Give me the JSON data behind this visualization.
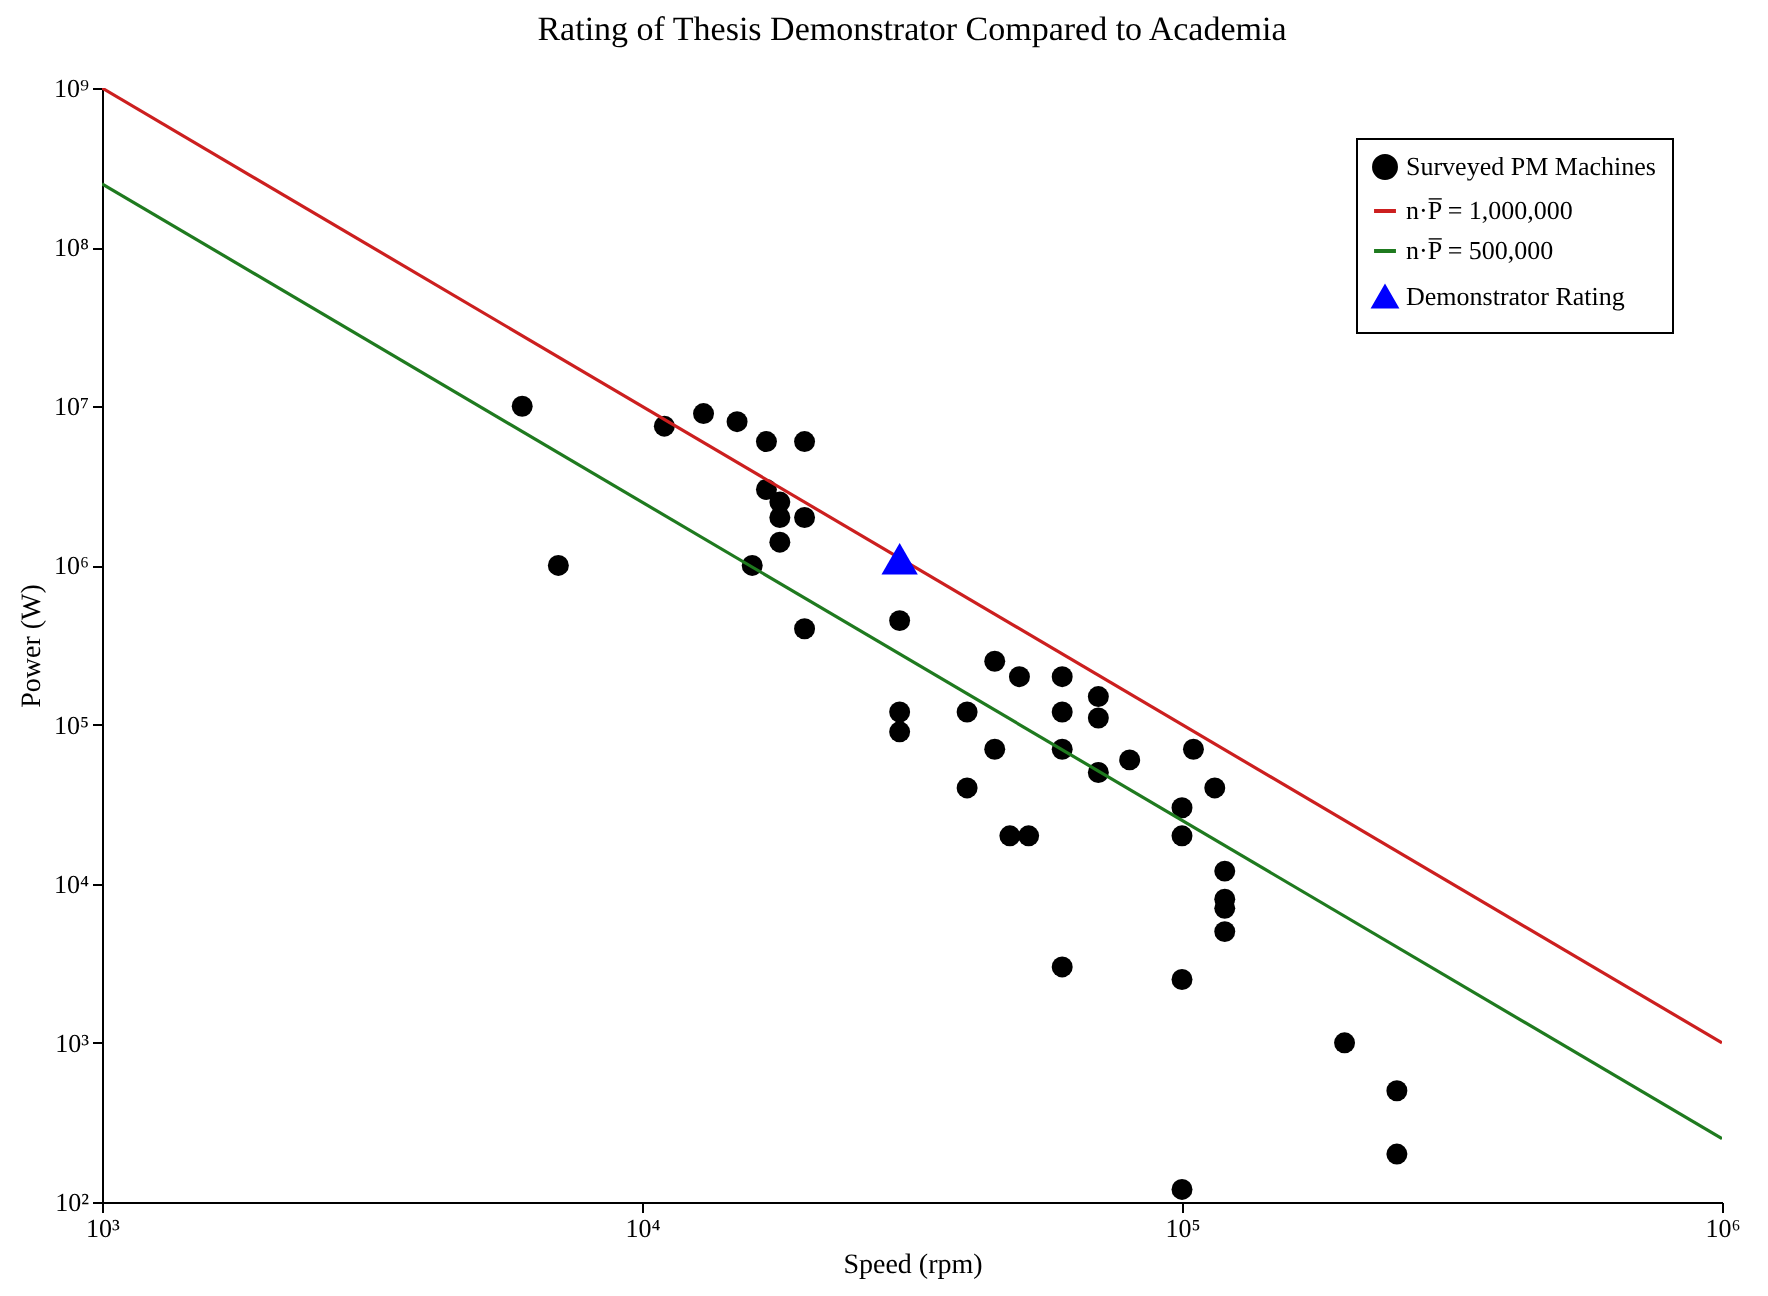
{
  "chart_data": {
    "type": "scatter",
    "title": "Rating of Thesis Demonstrator Compared to Academia",
    "xlabel": "Speed (rpm)",
    "ylabel": "Power (W)",
    "log": "xy",
    "grid": false,
    "legend": "top right",
    "xlim": [
      1000,
      1000000
    ],
    "ylim": [
      100,
      1000000000
    ],
    "xticks": [
      {
        "value": 1000,
        "label": "10³"
      },
      {
        "value": 10000,
        "label": "10⁴"
      },
      {
        "value": 100000,
        "label": "10⁵"
      },
      {
        "value": 1000000,
        "label": "10⁶"
      }
    ],
    "yticks": [
      {
        "value": 100,
        "label": "10²"
      },
      {
        "value": 1000,
        "label": "10³"
      },
      {
        "value": 10000,
        "label": "10⁴"
      },
      {
        "value": 100000,
        "label": "10⁵"
      },
      {
        "value": 1000000,
        "label": "10⁶"
      },
      {
        "value": 10000000,
        "label": "10⁷"
      },
      {
        "value": 100000000,
        "label": "10⁸"
      },
      {
        "value": 1000000000,
        "label": "10⁹"
      }
    ],
    "series": [
      {
        "name": "Surveyed PM Machines",
        "marker": "circle",
        "color": "#000000",
        "x": [
          6000,
          7000,
          11000,
          13000,
          15000,
          17000,
          20000,
          17000,
          18000,
          18000,
          20000,
          18000,
          16000,
          20000,
          30000,
          30000,
          30000,
          45000,
          50000,
          60000,
          70000,
          40000,
          60000,
          70000,
          45000,
          60000,
          105000,
          80000,
          70000,
          40000,
          115000,
          100000,
          48000,
          52000,
          100000,
          120000,
          120000,
          120000,
          120000,
          60000,
          100000,
          200000,
          250000,
          250000,
          100000
        ],
        "values": [
          10000000,
          1000000,
          7500000,
          9000000,
          8000000,
          6000000,
          6000000,
          3000000,
          2500000,
          2000000,
          2000000,
          1400000,
          1000000,
          400000,
          450000,
          120000,
          90000,
          250000,
          200000,
          200000,
          150000,
          120000,
          120000,
          110000,
          70000,
          70000,
          70000,
          60000,
          50000,
          40000,
          40000,
          30000,
          20000,
          20000,
          20000,
          12000,
          8000,
          7000,
          5000,
          3000,
          2500,
          1000,
          500,
          200,
          120
        ]
      },
      {
        "name": "n·P̅ = 1,000,000",
        "type": "line",
        "line_style": "solid",
        "color": "#cc1f1f",
        "x": [
          1000,
          1000000
        ],
        "values": [
          1000000000,
          1000
        ]
      },
      {
        "name": "n·P̅ = 500,000",
        "type": "line",
        "line_style": "solid",
        "color": "#1f7a1f",
        "x": [
          1000,
          1000000
        ],
        "values": [
          250000000,
          250
        ]
      },
      {
        "name": "Demonstrator Rating",
        "marker": "triangle",
        "color": "#0000ff",
        "x": [
          30000
        ],
        "values": [
          1100000
        ]
      }
    ]
  }
}
